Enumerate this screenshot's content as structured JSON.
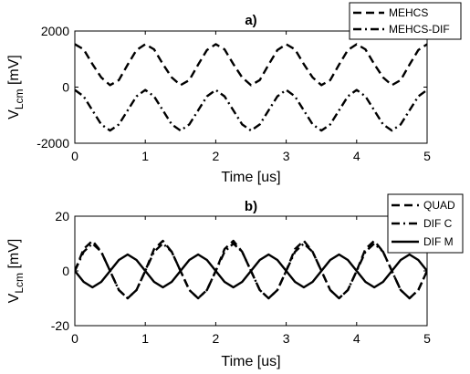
{
  "chart_data": [
    {
      "panel": "a",
      "type": "line",
      "title": "a)",
      "xlabel": "Time [us]",
      "ylabel": "V_Lcm [mV]",
      "ylabel_main": "V",
      "ylabel_sub": "Lcm",
      "ylabel_rest": " [mV]",
      "xlim": [
        0,
        5
      ],
      "ylim": [
        -2000,
        2000
      ],
      "xticks": [
        "0",
        "1",
        "2",
        "3",
        "4",
        "5"
      ],
      "yticks": [
        "-2000",
        "0",
        "2000"
      ],
      "grid": false,
      "legend_position": "top-right",
      "series": [
        {
          "name": "MEHCS",
          "style": "dashed",
          "color": "#000000",
          "x": [
            0,
            0.125,
            0.25,
            0.375,
            0.5,
            0.625,
            0.75,
            0.875,
            1,
            1.125,
            1.25,
            1.375,
            1.5,
            1.625,
            1.75,
            1.875,
            2,
            2.125,
            2.25,
            2.375,
            2.5,
            2.625,
            2.75,
            2.875,
            3,
            3.125,
            3.25,
            3.375,
            3.5,
            3.625,
            3.75,
            3.875,
            4,
            4.125,
            4.25,
            4.375,
            4.5,
            4.625,
            4.75,
            4.875,
            5
          ],
          "y": [
            1530,
            1345,
            820,
            345,
            70,
            250,
            800,
            1320,
            1530,
            1345,
            820,
            345,
            70,
            250,
            800,
            1320,
            1530,
            1345,
            820,
            345,
            70,
            250,
            800,
            1320,
            1530,
            1345,
            820,
            345,
            70,
            250,
            800,
            1320,
            1530,
            1345,
            820,
            345,
            70,
            250,
            800,
            1320,
            1530
          ]
        },
        {
          "name": "MEHCS-DIF",
          "style": "dashdot",
          "color": "#000000",
          "x": [
            0,
            0.125,
            0.25,
            0.375,
            0.5,
            0.625,
            0.75,
            0.875,
            1,
            1.125,
            1.25,
            1.375,
            1.5,
            1.625,
            1.75,
            1.875,
            2,
            2.125,
            2.25,
            2.375,
            2.5,
            2.625,
            2.75,
            2.875,
            3,
            3.125,
            3.25,
            3.375,
            3.5,
            3.625,
            3.75,
            3.875,
            4,
            4.125,
            4.25,
            4.375,
            4.5,
            4.625,
            4.75,
            4.875,
            5
          ],
          "y": [
            -100,
            -330,
            -830,
            -1330,
            -1550,
            -1330,
            -830,
            -330,
            -100,
            -330,
            -830,
            -1330,
            -1550,
            -1330,
            -830,
            -330,
            -100,
            -330,
            -830,
            -1330,
            -1550,
            -1330,
            -830,
            -330,
            -100,
            -330,
            -830,
            -1330,
            -1550,
            -1330,
            -830,
            -330,
            -100,
            -330,
            -830,
            -1330,
            -1550,
            -1330,
            -830,
            -330,
            -100
          ]
        }
      ]
    },
    {
      "panel": "b",
      "type": "line",
      "title": "b)",
      "xlabel": "Time [us]",
      "ylabel": "V_Lcm [mV]",
      "ylabel_main": "V",
      "ylabel_sub": "Lcm",
      "ylabel_rest": " [mV]",
      "xlim": [
        0,
        5
      ],
      "ylim": [
        -20,
        20
      ],
      "xticks": [
        "0",
        "1",
        "2",
        "3",
        "4",
        "5"
      ],
      "yticks": [
        "-20",
        "0",
        "20"
      ],
      "grid": false,
      "legend_position": "top-right",
      "series": [
        {
          "name": "QUAD",
          "style": "dashed",
          "color": "#000000",
          "x": [
            0,
            0.125,
            0.25,
            0.375,
            0.5,
            0.625,
            0.75,
            0.875,
            1,
            1.125,
            1.25,
            1.375,
            1.5,
            1.625,
            1.75,
            1.875,
            2,
            2.125,
            2.25,
            2.375,
            2.5,
            2.625,
            2.75,
            2.875,
            3,
            3.125,
            3.25,
            3.375,
            3.5,
            3.625,
            3.75,
            3.875,
            4,
            4.125,
            4.25,
            4.375,
            4.5,
            4.625,
            4.75,
            4.875,
            5
          ],
          "y": [
            0,
            8,
            11,
            7,
            0,
            -7,
            -10,
            -7,
            0,
            8,
            11,
            7,
            0,
            -7,
            -10,
            -7,
            0,
            8,
            11,
            7,
            0,
            -7,
            -10,
            -7,
            0,
            8,
            11,
            7,
            0,
            -7,
            -10,
            -7,
            0,
            8,
            11,
            7,
            0,
            -7,
            -10,
            -7,
            0
          ]
        },
        {
          "name": "DIF C",
          "style": "dashdot",
          "color": "#000000",
          "x": [
            0,
            0.125,
            0.25,
            0.375,
            0.5,
            0.625,
            0.75,
            0.875,
            1,
            1.125,
            1.25,
            1.375,
            1.5,
            1.625,
            1.75,
            1.875,
            2,
            2.125,
            2.25,
            2.375,
            2.5,
            2.625,
            2.75,
            2.875,
            3,
            3.125,
            3.25,
            3.375,
            3.5,
            3.625,
            3.75,
            3.875,
            4,
            4.125,
            4.25,
            4.375,
            4.5,
            4.625,
            4.75,
            4.875,
            5
          ],
          "y": [
            0,
            7,
            10,
            7,
            0,
            -7,
            -10,
            -7,
            0,
            7,
            10,
            7,
            0,
            -7,
            -10,
            -7,
            0,
            7,
            10,
            7,
            0,
            -7,
            -10,
            -7,
            0,
            7,
            10,
            7,
            0,
            -7,
            -10,
            -7,
            0,
            7,
            10,
            7,
            0,
            -7,
            -10,
            -7,
            0
          ]
        },
        {
          "name": "DIF M",
          "style": "solid",
          "color": "#000000",
          "x": [
            0,
            0.125,
            0.25,
            0.375,
            0.5,
            0.625,
            0.75,
            0.875,
            1,
            1.125,
            1.25,
            1.375,
            1.5,
            1.625,
            1.75,
            1.875,
            2,
            2.125,
            2.25,
            2.375,
            2.5,
            2.625,
            2.75,
            2.875,
            3,
            3.125,
            3.25,
            3.375,
            3.5,
            3.625,
            3.75,
            3.875,
            4,
            4.125,
            4.25,
            4.375,
            4.5,
            4.625,
            4.75,
            4.875,
            5
          ],
          "y": [
            0,
            -4,
            -6,
            -4,
            0,
            4,
            6,
            4,
            0,
            -4,
            -6,
            -4,
            0,
            4,
            6,
            4,
            0,
            -4,
            -6,
            -4,
            0,
            4,
            6,
            4,
            0,
            -4,
            -6,
            -4,
            0,
            4,
            6,
            4,
            0,
            -4,
            -6,
            -4,
            0,
            4,
            6,
            4,
            0
          ]
        }
      ]
    }
  ]
}
